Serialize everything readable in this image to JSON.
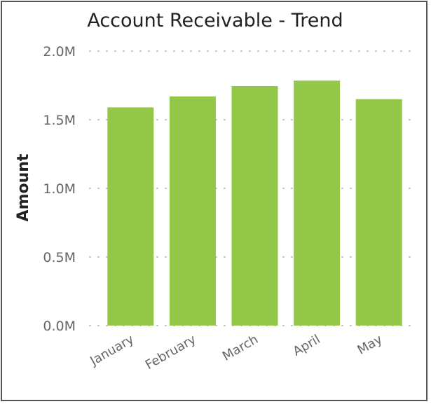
{
  "chart_data": {
    "type": "bar",
    "title": "Account Receivable - Trend",
    "xlabel": "",
    "ylabel": "Amount",
    "categories": [
      "January",
      "February",
      "March",
      "April",
      "May"
    ],
    "values": [
      1.59,
      1.67,
      1.745,
      1.785,
      1.65
    ],
    "value_unit": "M",
    "ylim": [
      0,
      2.0
    ],
    "yticks": [
      "0.0M",
      "0.5M",
      "1.0M",
      "1.5M",
      "2.0M"
    ],
    "grid": true,
    "legend": "none",
    "bar_color": "#92c748"
  }
}
